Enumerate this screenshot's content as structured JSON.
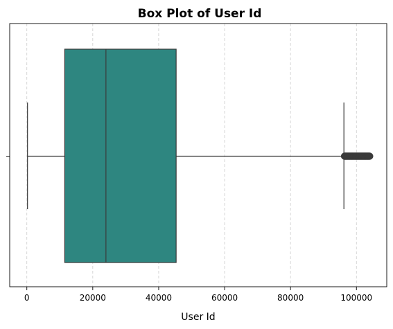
{
  "chart_data": {
    "type": "box",
    "orientation": "horizontal",
    "title": "Box Plot of User Id",
    "xlabel": "User Id",
    "ylabel": "",
    "xlim": [
      -5200,
      109200
    ],
    "xticks": [
      0,
      20000,
      40000,
      60000,
      80000,
      100000
    ],
    "xtick_labels": [
      "0",
      "20000",
      "40000",
      "60000",
      "80000",
      "100000"
    ],
    "grid": {
      "x": true,
      "y": false,
      "style": "dashed"
    },
    "box": {
      "whisker_low": 200,
      "q1": 11500,
      "median": 24000,
      "q3": 45300,
      "whisker_high": 96200,
      "outliers_range": [
        96400,
        104000
      ]
    },
    "colors": {
      "box_fill": "#2e8680",
      "line": "#3a3a3a",
      "grid": "#cccccc"
    }
  }
}
